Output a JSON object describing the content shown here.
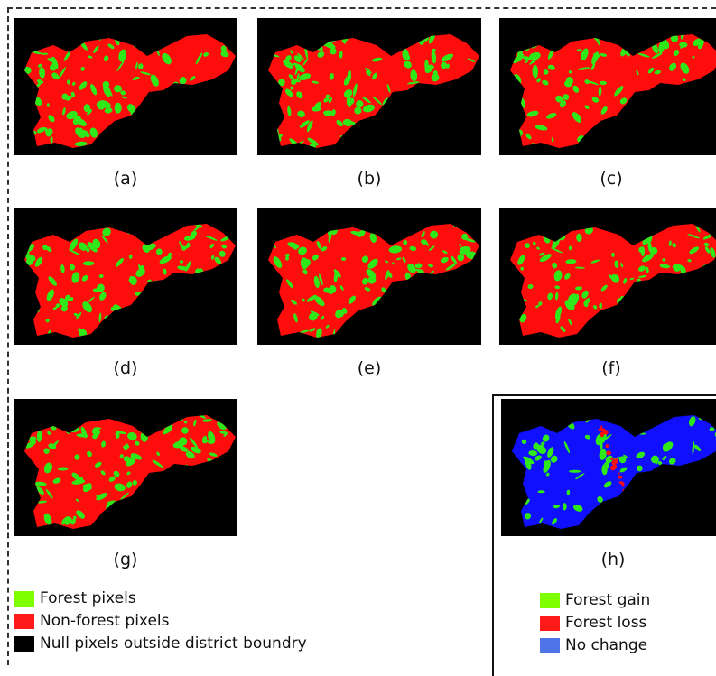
{
  "panels": [
    {
      "id": "a",
      "caption": "(a)",
      "kind": "forest",
      "green_level": 0.35
    },
    {
      "id": "b",
      "caption": "(b)",
      "kind": "forest",
      "green_level": 0.55
    },
    {
      "id": "c",
      "caption": "(c)",
      "kind": "forest",
      "green_level": 0.32
    },
    {
      "id": "d",
      "caption": "(d)",
      "kind": "forest",
      "green_level": 0.48
    },
    {
      "id": "e",
      "caption": "(e)",
      "kind": "forest",
      "green_level": 0.45
    },
    {
      "id": "f",
      "caption": "(f)",
      "kind": "forest",
      "green_level": 0.4
    },
    {
      "id": "g",
      "caption": "(g)",
      "kind": "forest",
      "green_level": 0.5
    },
    {
      "id": "h",
      "caption": "(h)",
      "kind": "change",
      "green_level": 0.25
    }
  ],
  "legend_classification": [
    {
      "label": "Forest pixels",
      "color": "#7fff00"
    },
    {
      "label": "Non-forest pixels",
      "color": "#ff1a1a"
    },
    {
      "label": "Null pixels outside district boundry",
      "color": "#000000"
    }
  ],
  "legend_change": [
    {
      "label": "Forest gain",
      "color": "#7fff00"
    },
    {
      "label": "Forest loss",
      "color": "#ff1a1a"
    },
    {
      "label": "No change",
      "color": "#4f74e8"
    }
  ],
  "colors": {
    "forest": "#2ee81a",
    "nonforest": "#ff0d0d",
    "nochange": "#1010ff",
    "null": "#000000"
  }
}
